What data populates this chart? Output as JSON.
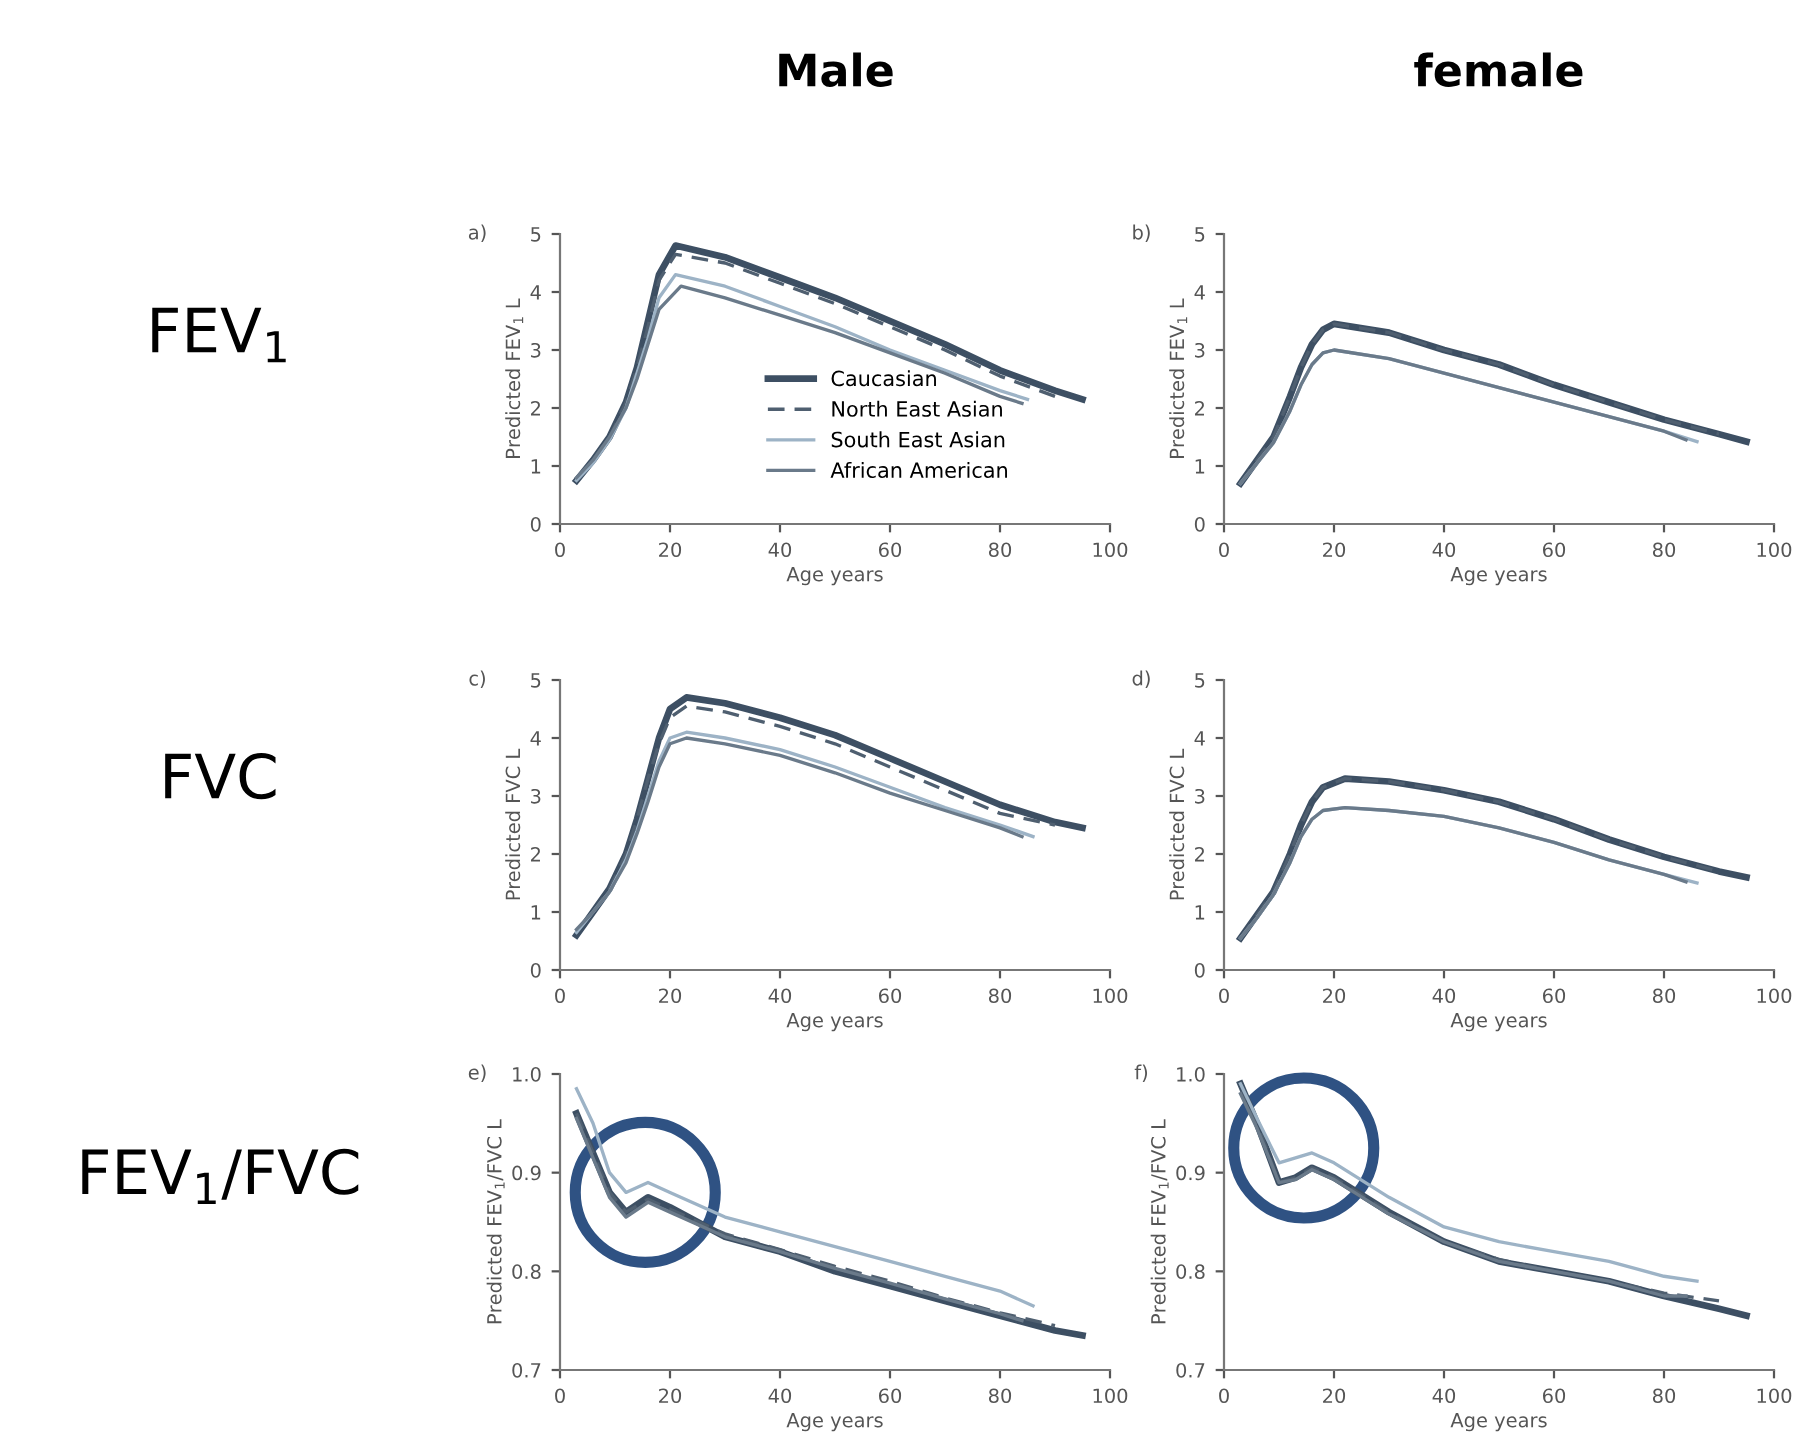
{
  "chart_data": [
    {
      "type": "line",
      "title": "Male",
      "xlabel": "Age years",
      "ylabel": "Predicted FEV$_{1}$ L",
      "annotations": [
        "a)",
        "FEV$_{1}$"
      ],
      "xlim": [
        0,
        100
      ],
      "xticks": [
        0,
        20,
        40,
        60,
        80,
        100
      ],
      "ylim": [
        0,
        5
      ],
      "yticks": [
        0,
        1,
        2,
        3,
        4,
        5
      ],
      "grid": false,
      "legend": "bottom right",
      "series": [
        {
          "name": "Caucasian",
          "color": "#3d4f63",
          "line_style": "solid",
          "x": [
            3,
            6,
            9,
            12,
            14,
            16,
            18,
            21,
            30,
            40,
            50,
            60,
            70,
            80,
            90,
            95
          ],
          "values": [
            0.75,
            1.1,
            1.5,
            2.1,
            2.7,
            3.5,
            4.3,
            4.8,
            4.6,
            4.25,
            3.9,
            3.5,
            3.1,
            2.65,
            2.3,
            2.15
          ]
        },
        {
          "name": "North East Asian",
          "color": "#4f5f70",
          "line_style": "dashed",
          "x": [
            3,
            6,
            9,
            12,
            14,
            16,
            18,
            21,
            30,
            40,
            50,
            60,
            70,
            80,
            90
          ],
          "values": [
            0.75,
            1.1,
            1.5,
            2.1,
            2.7,
            3.4,
            4.2,
            4.65,
            4.5,
            4.15,
            3.8,
            3.4,
            3.0,
            2.55,
            2.2
          ]
        },
        {
          "name": "South East Asian",
          "color": "#9db3c6",
          "line_style": "solid",
          "x": [
            3,
            6,
            9,
            12,
            14,
            16,
            18,
            21,
            30,
            40,
            50,
            60,
            70,
            80,
            85
          ],
          "values": [
            0.75,
            1.05,
            1.45,
            2.0,
            2.6,
            3.2,
            3.9,
            4.3,
            4.1,
            3.75,
            3.4,
            3.0,
            2.65,
            2.3,
            2.15
          ]
        },
        {
          "name": "African American",
          "color": "#6a7a8a",
          "line_style": "solid",
          "x": [
            3,
            6,
            9,
            12,
            14,
            16,
            18,
            22,
            30,
            40,
            50,
            60,
            70,
            80,
            84
          ],
          "values": [
            0.8,
            1.1,
            1.5,
            2.0,
            2.5,
            3.1,
            3.7,
            4.1,
            3.9,
            3.6,
            3.3,
            2.95,
            2.6,
            2.2,
            2.08
          ]
        }
      ]
    },
    {
      "type": "line",
      "title": "female",
      "xlabel": "Age years",
      "ylabel": "Predicted FEV$_{1}$ L",
      "annotations": [
        "b)"
      ],
      "xlim": [
        0,
        100
      ],
      "xticks": [
        0,
        20,
        40,
        60,
        80,
        100
      ],
      "ylim": [
        0,
        5
      ],
      "yticks": [
        0,
        1,
        2,
        3,
        4,
        5
      ],
      "grid": false,
      "series": [
        {
          "color": "#3d4f63",
          "line_style": "solid",
          "x": [
            3,
            6,
            9,
            12,
            14,
            16,
            18,
            20,
            30,
            40,
            50,
            60,
            70,
            80,
            90,
            95
          ],
          "values": [
            0.7,
            1.1,
            1.5,
            2.2,
            2.7,
            3.1,
            3.35,
            3.45,
            3.3,
            3.0,
            2.75,
            2.4,
            2.1,
            1.8,
            1.55,
            1.42
          ]
        },
        {
          "color": "#4f5f70",
          "line_style": "dashed",
          "x": [
            3,
            6,
            9,
            12,
            14,
            16,
            18,
            20,
            30,
            40,
            50,
            60,
            70,
            80,
            90
          ],
          "values": [
            0.7,
            1.1,
            1.5,
            2.2,
            2.7,
            3.1,
            3.35,
            3.45,
            3.3,
            3.0,
            2.75,
            2.4,
            2.1,
            1.8,
            1.55
          ]
        },
        {
          "color": "#9db3c6",
          "line_style": "solid",
          "x": [
            3,
            6,
            9,
            12,
            14,
            16,
            18,
            20,
            30,
            40,
            50,
            60,
            70,
            80,
            86
          ],
          "values": [
            0.7,
            1.05,
            1.4,
            1.95,
            2.4,
            2.75,
            2.95,
            3.0,
            2.85,
            2.6,
            2.35,
            2.1,
            1.85,
            1.6,
            1.42
          ]
        },
        {
          "color": "#6a7a8a",
          "line_style": "solid",
          "x": [
            3,
            6,
            9,
            12,
            14,
            16,
            18,
            20,
            30,
            40,
            50,
            60,
            70,
            80,
            84
          ],
          "values": [
            0.7,
            1.05,
            1.4,
            1.95,
            2.4,
            2.75,
            2.95,
            3.0,
            2.85,
            2.6,
            2.35,
            2.1,
            1.85,
            1.6,
            1.45
          ]
        }
      ]
    },
    {
      "type": "line",
      "xlabel": "Age years",
      "ylabel": "Predicted FVC L",
      "annotations": [
        "c)",
        "FVC"
      ],
      "xlim": [
        0,
        100
      ],
      "xticks": [
        0,
        20,
        40,
        60,
        80,
        100
      ],
      "ylim": [
        0,
        5
      ],
      "yticks": [
        0,
        1,
        2,
        3,
        4,
        5
      ],
      "grid": false,
      "series": [
        {
          "color": "#3d4f63",
          "line_style": "solid",
          "x": [
            3,
            6,
            9,
            12,
            14,
            16,
            18,
            20,
            23,
            30,
            40,
            50,
            60,
            70,
            80,
            90,
            95
          ],
          "values": [
            0.6,
            1.0,
            1.4,
            2.0,
            2.6,
            3.3,
            4.0,
            4.5,
            4.7,
            4.6,
            4.35,
            4.05,
            3.65,
            3.25,
            2.85,
            2.55,
            2.45
          ]
        },
        {
          "color": "#4f5f70",
          "line_style": "dashed",
          "x": [
            3,
            6,
            9,
            12,
            14,
            16,
            18,
            20,
            23,
            30,
            40,
            50,
            60,
            70,
            80,
            90
          ],
          "values": [
            0.65,
            1.0,
            1.4,
            2.0,
            2.6,
            3.3,
            3.9,
            4.35,
            4.55,
            4.45,
            4.2,
            3.9,
            3.5,
            3.1,
            2.7,
            2.5
          ]
        },
        {
          "color": "#9db3c6",
          "line_style": "solid",
          "x": [
            3,
            6,
            9,
            12,
            14,
            16,
            18,
            20,
            23,
            30,
            40,
            50,
            60,
            70,
            80,
            86
          ],
          "values": [
            0.65,
            1.0,
            1.35,
            1.9,
            2.4,
            3.0,
            3.6,
            4.0,
            4.1,
            4.0,
            3.8,
            3.5,
            3.15,
            2.8,
            2.5,
            2.3
          ]
        },
        {
          "color": "#6a7a8a",
          "line_style": "solid",
          "x": [
            3,
            6,
            9,
            12,
            14,
            16,
            18,
            20,
            23,
            30,
            40,
            50,
            60,
            70,
            80,
            84
          ],
          "values": [
            0.7,
            1.0,
            1.35,
            1.85,
            2.35,
            2.9,
            3.5,
            3.9,
            4.0,
            3.9,
            3.7,
            3.4,
            3.05,
            2.75,
            2.45,
            2.3
          ]
        }
      ]
    },
    {
      "type": "line",
      "xlabel": "Age years",
      "ylabel": "Predicted FVC L",
      "annotations": [
        "d)"
      ],
      "xlim": [
        0,
        100
      ],
      "xticks": [
        0,
        20,
        40,
        60,
        80,
        100
      ],
      "ylim": [
        0,
        5
      ],
      "yticks": [
        0,
        1,
        2,
        3,
        4,
        5
      ],
      "grid": false,
      "series": [
        {
          "color": "#3d4f63",
          "line_style": "solid",
          "x": [
            3,
            6,
            9,
            12,
            14,
            16,
            18,
            22,
            30,
            40,
            50,
            60,
            70,
            80,
            90,
            95
          ],
          "values": [
            0.55,
            0.95,
            1.35,
            2.0,
            2.5,
            2.9,
            3.15,
            3.3,
            3.25,
            3.1,
            2.9,
            2.6,
            2.25,
            1.95,
            1.7,
            1.6
          ]
        },
        {
          "color": "#4f5f70",
          "line_style": "dashed",
          "x": [
            3,
            6,
            9,
            12,
            14,
            16,
            18,
            22,
            30,
            40,
            50,
            60,
            70,
            80,
            90
          ],
          "values": [
            0.55,
            0.95,
            1.35,
            2.0,
            2.5,
            2.9,
            3.15,
            3.3,
            3.25,
            3.1,
            2.9,
            2.6,
            2.25,
            1.95,
            1.7
          ]
        },
        {
          "color": "#9db3c6",
          "line_style": "solid",
          "x": [
            3,
            6,
            9,
            12,
            14,
            16,
            18,
            22,
            30,
            40,
            50,
            60,
            70,
            80,
            86
          ],
          "values": [
            0.55,
            0.9,
            1.3,
            1.85,
            2.3,
            2.6,
            2.75,
            2.8,
            2.75,
            2.65,
            2.45,
            2.2,
            1.9,
            1.65,
            1.5
          ]
        },
        {
          "color": "#6a7a8a",
          "line_style": "solid",
          "x": [
            3,
            6,
            9,
            12,
            14,
            16,
            18,
            22,
            30,
            40,
            50,
            60,
            70,
            80,
            84
          ],
          "values": [
            0.55,
            0.9,
            1.3,
            1.85,
            2.3,
            2.6,
            2.75,
            2.8,
            2.75,
            2.65,
            2.45,
            2.2,
            1.9,
            1.65,
            1.52
          ]
        }
      ]
    },
    {
      "type": "line",
      "xlabel": "Age years",
      "ylabel": "Predicted FEV$_{1}$/FVC L",
      "annotations": [
        "e)",
        "FEV$_{1}$/FVC"
      ],
      "xlim": [
        0,
        100
      ],
      "xticks": [
        0,
        20,
        40,
        60,
        80,
        100
      ],
      "ylim": [
        0.7,
        1.0
      ],
      "yticks": [
        {
          "value": 0.7,
          "label": "0.7"
        },
        {
          "value": 0.8,
          "label": "0.8"
        },
        {
          "value": 0.9,
          "label": "0.9"
        },
        {
          "value": 1.0,
          "label": "1.0"
        }
      ],
      "grid": false,
      "series": [
        {
          "color": "#3d4f63",
          "line_style": "solid",
          "x": [
            3,
            6,
            9,
            12,
            16,
            20,
            30,
            40,
            50,
            60,
            70,
            80,
            90,
            95
          ],
          "values": [
            0.96,
            0.92,
            0.88,
            0.86,
            0.875,
            0.865,
            0.835,
            0.82,
            0.8,
            0.785,
            0.77,
            0.755,
            0.74,
            0.735
          ]
        },
        {
          "color": "#4f5f70",
          "line_style": "dashed",
          "x": [
            3,
            6,
            9,
            12,
            16,
            20,
            30,
            40,
            50,
            60,
            70,
            80,
            90
          ],
          "values": [
            0.96,
            0.92,
            0.88,
            0.86,
            0.873,
            0.863,
            0.838,
            0.822,
            0.805,
            0.79,
            0.773,
            0.758,
            0.745
          ]
        },
        {
          "color": "#9db3c6",
          "line_style": "solid",
          "x": [
            3,
            6,
            9,
            12,
            16,
            20,
            30,
            40,
            50,
            60,
            70,
            80,
            86
          ],
          "values": [
            0.985,
            0.95,
            0.9,
            0.88,
            0.89,
            0.88,
            0.855,
            0.84,
            0.825,
            0.81,
            0.795,
            0.78,
            0.765
          ]
        },
        {
          "color": "#6a7a8a",
          "line_style": "solid",
          "x": [
            3,
            6,
            9,
            12,
            16,
            20,
            30,
            40,
            50,
            60,
            70,
            80,
            84
          ],
          "values": [
            0.955,
            0.915,
            0.875,
            0.855,
            0.87,
            0.86,
            0.835,
            0.82,
            0.803,
            0.788,
            0.772,
            0.757,
            0.75
          ]
        }
      ]
    },
    {
      "type": "line",
      "xlabel": "Age years",
      "ylabel": "Predicted FEV$_{1}$/FVC L",
      "annotations": [
        "f)"
      ],
      "xlim": [
        0,
        100
      ],
      "xticks": [
        0,
        20,
        40,
        60,
        80,
        100
      ],
      "ylim": [
        0.7,
        1.0
      ],
      "yticks": [
        {
          "value": 0.7,
          "label": "0.7"
        },
        {
          "value": 0.8,
          "label": "0.8"
        },
        {
          "value": 0.9,
          "label": "0.9"
        },
        {
          "value": 1.0,
          "label": "1.0"
        }
      ],
      "grid": false,
      "series": [
        {
          "color": "#3d4f63",
          "line_style": "solid",
          "x": [
            3,
            6,
            10,
            13,
            16,
            20,
            30,
            40,
            50,
            60,
            70,
            80,
            90,
            95
          ],
          "values": [
            0.99,
            0.95,
            0.89,
            0.895,
            0.905,
            0.895,
            0.86,
            0.83,
            0.81,
            0.8,
            0.79,
            0.775,
            0.762,
            0.755
          ]
        },
        {
          "color": "#4f5f70",
          "line_style": "dashed",
          "x": [
            3,
            6,
            10,
            13,
            16,
            20,
            30,
            40,
            50,
            60,
            70,
            80,
            90
          ],
          "values": [
            0.99,
            0.95,
            0.89,
            0.895,
            0.905,
            0.895,
            0.86,
            0.83,
            0.812,
            0.8,
            0.79,
            0.778,
            0.77
          ]
        },
        {
          "color": "#9db3c6",
          "line_style": "solid",
          "x": [
            3,
            6,
            10,
            13,
            16,
            20,
            30,
            40,
            50,
            60,
            70,
            80,
            86
          ],
          "values": [
            0.99,
            0.955,
            0.91,
            0.915,
            0.92,
            0.91,
            0.875,
            0.845,
            0.83,
            0.82,
            0.81,
            0.795,
            0.79
          ]
        },
        {
          "color": "#6a7a8a",
          "line_style": "solid",
          "x": [
            3,
            6,
            10,
            13,
            16,
            20,
            30,
            40,
            50,
            60,
            70,
            80,
            84
          ],
          "values": [
            0.98,
            0.945,
            0.89,
            0.893,
            0.903,
            0.893,
            0.858,
            0.83,
            0.81,
            0.8,
            0.79,
            0.775,
            0.775
          ]
        }
      ]
    }
  ]
}
